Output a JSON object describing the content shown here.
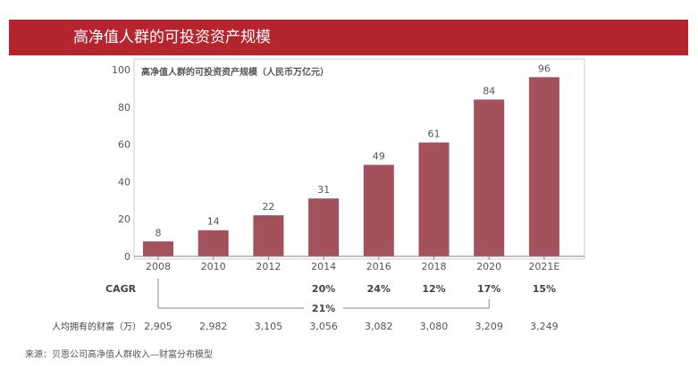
{
  "header": {
    "title": "高净值人群的可投资资产规模"
  },
  "colors": {
    "banner": "#b5252e",
    "bar": "#a3525c",
    "text": "#555555",
    "axis": "#888888"
  },
  "chart_data": {
    "type": "bar",
    "title": "高净值人群的可投资资产规模（人民币万亿元）",
    "categories": [
      "2008",
      "2010",
      "2012",
      "2014",
      "2016",
      "2018",
      "2020",
      "2021E"
    ],
    "values": [
      8,
      14,
      22,
      31,
      49,
      61,
      84,
      96
    ],
    "ylim": [
      0,
      100
    ],
    "yticks": [
      0,
      20,
      40,
      60,
      80,
      100
    ],
    "xlabel": "",
    "ylabel": "",
    "grid": false,
    "cagr": {
      "label": "CAGR",
      "per_period": [
        "",
        "",
        "",
        "20%",
        "24%",
        "12%",
        "17%",
        "15%"
      ],
      "overall": "21%"
    },
    "per_capita": {
      "label": "人均拥有的财富（万）",
      "values": [
        "2,905",
        "2,982",
        "3,105",
        "3,056",
        "3,082",
        "3,080",
        "3,209",
        "3,249"
      ]
    }
  },
  "footer": {
    "source": "来源：贝恩公司高净值人群收入—财富分布模型"
  }
}
